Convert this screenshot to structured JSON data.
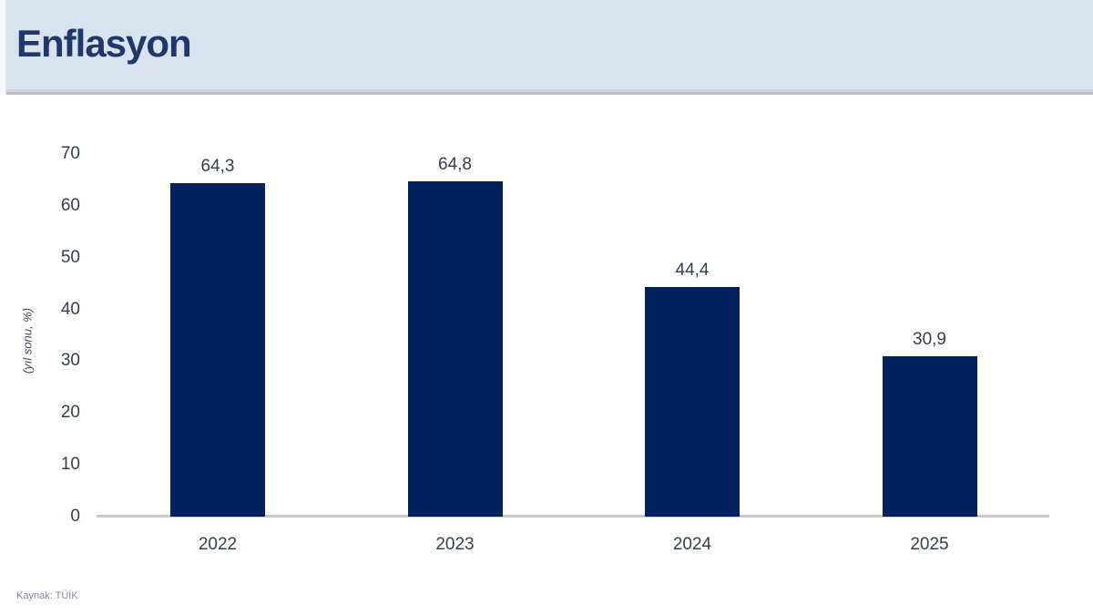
{
  "header": {
    "title": "Enflasyon"
  },
  "chart_data": {
    "type": "bar",
    "title": "Enflasyon",
    "categories": [
      "2022",
      "2023",
      "2024",
      "2025"
    ],
    "values": [
      64.3,
      64.8,
      44.4,
      30.9
    ],
    "value_labels": [
      "64,3",
      "64,8",
      "44,4",
      "30,9"
    ],
    "ylabel": "(yıl sonu, %)",
    "xlabel": "",
    "ylim": [
      0,
      70
    ],
    "yticks": [
      0,
      10,
      20,
      30,
      40,
      50,
      60,
      70
    ],
    "grid": false,
    "legend": "none",
    "bar_color": "#03215f",
    "source": "Kaynak: TÜİK"
  },
  "colors": {
    "header_band": "#d9e2ee",
    "title_text": "#1d3869",
    "bar": "#03215f",
    "axis_line": "#c8c8c8",
    "tick_text": "#333f4f",
    "source_text": "#7e8ba1",
    "background": "#ffffff"
  }
}
